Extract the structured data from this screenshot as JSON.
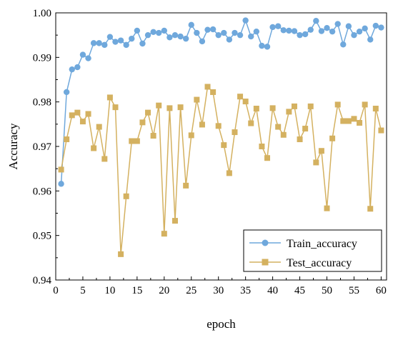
{
  "chart_data": {
    "type": "line",
    "title": "",
    "xlabel": "epoch",
    "ylabel": "Accuracy",
    "xlim": [
      0,
      61
    ],
    "ylim": [
      0.94,
      1.0
    ],
    "xticks": [
      0,
      5,
      10,
      15,
      20,
      25,
      30,
      35,
      40,
      45,
      50,
      55,
      60
    ],
    "yticks": [
      0.94,
      0.95,
      0.96,
      0.97,
      0.98,
      0.99,
      1.0
    ],
    "ytick_labels": [
      "0.94",
      "0.95",
      "0.96",
      "0.97",
      "0.98",
      "0.99",
      "1.00"
    ],
    "grid": false,
    "legend_position": "bottom-right",
    "series": [
      {
        "name": "Train_accuracy",
        "color": "#6fa8dc",
        "marker": "circle",
        "x": [
          1,
          2,
          3,
          4,
          5,
          6,
          7,
          8,
          9,
          10,
          11,
          12,
          13,
          14,
          15,
          16,
          17,
          18,
          19,
          20,
          21,
          22,
          23,
          24,
          25,
          26,
          27,
          28,
          29,
          30,
          31,
          32,
          33,
          34,
          35,
          36,
          37,
          38,
          39,
          40,
          41,
          42,
          43,
          44,
          45,
          46,
          47,
          48,
          49,
          50,
          51,
          52,
          53,
          54,
          55,
          56,
          57,
          58,
          59,
          60
        ],
        "values": [
          0.9616,
          0.9822,
          0.9873,
          0.9878,
          0.9906,
          0.9898,
          0.9932,
          0.9932,
          0.9928,
          0.9946,
          0.9935,
          0.9938,
          0.9928,
          0.9942,
          0.996,
          0.9931,
          0.995,
          0.9957,
          0.9955,
          0.996,
          0.9945,
          0.995,
          0.9947,
          0.9942,
          0.9973,
          0.9955,
          0.9936,
          0.9962,
          0.9963,
          0.995,
          0.9955,
          0.994,
          0.9955,
          0.995,
          0.9983,
          0.9947,
          0.9958,
          0.9926,
          0.9924,
          0.9968,
          0.997,
          0.9961,
          0.996,
          0.9959,
          0.995,
          0.9952,
          0.9962,
          0.9982,
          0.9959,
          0.9966,
          0.9958,
          0.9975,
          0.9929,
          0.997,
          0.995,
          0.9958,
          0.9965,
          0.994,
          0.9971,
          0.9967
        ]
      },
      {
        "name": "Test_accuracy",
        "color": "#d4b160",
        "marker": "square",
        "x": [
          1,
          2,
          3,
          4,
          5,
          6,
          7,
          8,
          9,
          10,
          11,
          12,
          13,
          14,
          15,
          16,
          17,
          18,
          19,
          20,
          21,
          22,
          23,
          24,
          25,
          26,
          27,
          28,
          29,
          30,
          31,
          32,
          33,
          34,
          35,
          36,
          37,
          38,
          39,
          40,
          41,
          42,
          43,
          44,
          45,
          46,
          47,
          48,
          49,
          50,
          51,
          52,
          53,
          54,
          55,
          56,
          57,
          58,
          59,
          60
        ],
        "values": [
          0.9648,
          0.9716,
          0.977,
          0.9776,
          0.9756,
          0.9773,
          0.9696,
          0.9744,
          0.9672,
          0.981,
          0.9788,
          0.9458,
          0.9588,
          0.9712,
          0.9712,
          0.9754,
          0.9776,
          0.9724,
          0.9792,
          0.9504,
          0.9786,
          0.9533,
          0.9788,
          0.9612,
          0.9725,
          0.9805,
          0.9749,
          0.9834,
          0.9822,
          0.9746,
          0.9703,
          0.964,
          0.9732,
          0.9812,
          0.9801,
          0.9752,
          0.9785,
          0.97,
          0.9674,
          0.9786,
          0.9744,
          0.9726,
          0.9778,
          0.979,
          0.9716,
          0.974,
          0.979,
          0.9664,
          0.969,
          0.9561,
          0.9718,
          0.9794,
          0.9757,
          0.9757,
          0.9762,
          0.9753,
          0.9794,
          0.956,
          0.9785,
          0.9736
        ]
      }
    ]
  }
}
